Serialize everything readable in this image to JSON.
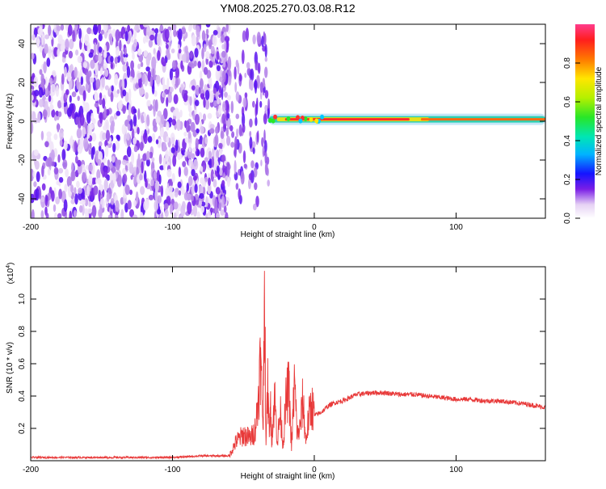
{
  "chart_data": [
    {
      "type": "heatmap",
      "title": "YM08.2025.270.03.08.R12",
      "xlabel": "Height of straight line (km)",
      "ylabel": "Frequency (Hz)",
      "xlim": [
        -200,
        163
      ],
      "ylim": [
        -50,
        50
      ],
      "xticks": [
        -200,
        -100,
        0,
        100
      ],
      "xtick_labels": [
        "-200",
        "-100",
        "0",
        "100"
      ],
      "yticks": [
        -40,
        -20,
        0,
        20,
        40
      ],
      "ytick_labels": [
        "-40",
        "-20",
        "0",
        "20",
        "40"
      ],
      "colorbar": {
        "label": "Normalized spectral amplitude",
        "range": [
          0,
          1
        ],
        "ticks": [
          0.0,
          0.2,
          0.4,
          0.6,
          0.8
        ],
        "tick_labels": [
          "0.0",
          "0.2",
          "0.4",
          "0.6",
          "0.8"
        ]
      },
      "signal_band": {
        "frequency": 1,
        "start_height": -32,
        "end_height": 163
      }
    },
    {
      "type": "line",
      "xlabel": "Height of straight line (km)",
      "ylabel": "SNR (10 * v/v)",
      "scale_label": "(x10",
      "scale_exp": "4",
      "scale_close": ")",
      "xlim": [
        -200,
        163
      ],
      "ylim": [
        0,
        1.2
      ],
      "xticks": [
        -200,
        -100,
        0,
        100
      ],
      "xtick_labels": [
        "-200",
        "-100",
        "0",
        "100"
      ],
      "yticks": [
        0.2,
        0.4,
        0.6,
        0.8,
        1.0
      ],
      "ytick_labels": [
        "0.2",
        "0.4",
        "0.6",
        "0.8",
        "1.0"
      ],
      "line_color": "#e83a3a",
      "x": [
        -200,
        -150,
        -100,
        -80,
        -60,
        -55,
        -50,
        -45,
        -42,
        -40,
        -38,
        -36,
        -35,
        -34,
        -33,
        -32,
        -31,
        -30,
        -28,
        -26,
        -24,
        -22,
        -20,
        -18,
        -16,
        -14,
        -12,
        -10,
        -8,
        -6,
        -4,
        -2,
        0,
        5,
        10,
        15,
        20,
        25,
        30,
        40,
        50,
        60,
        70,
        80,
        90,
        100,
        110,
        120,
        130,
        140,
        150,
        163
      ],
      "y": [
        0.02,
        0.02,
        0.02,
        0.03,
        0.03,
        0.12,
        0.16,
        0.14,
        0.18,
        0.32,
        0.62,
        0.22,
        1.2,
        0.05,
        0.52,
        0.2,
        0.35,
        0.13,
        0.4,
        0.12,
        0.3,
        0.1,
        0.36,
        0.46,
        0.08,
        0.49,
        0.16,
        0.2,
        0.38,
        0.12,
        0.26,
        0.35,
        0.28,
        0.3,
        0.34,
        0.36,
        0.37,
        0.39,
        0.41,
        0.42,
        0.42,
        0.41,
        0.41,
        0.4,
        0.39,
        0.38,
        0.38,
        0.37,
        0.37,
        0.36,
        0.35,
        0.33
      ]
    }
  ]
}
